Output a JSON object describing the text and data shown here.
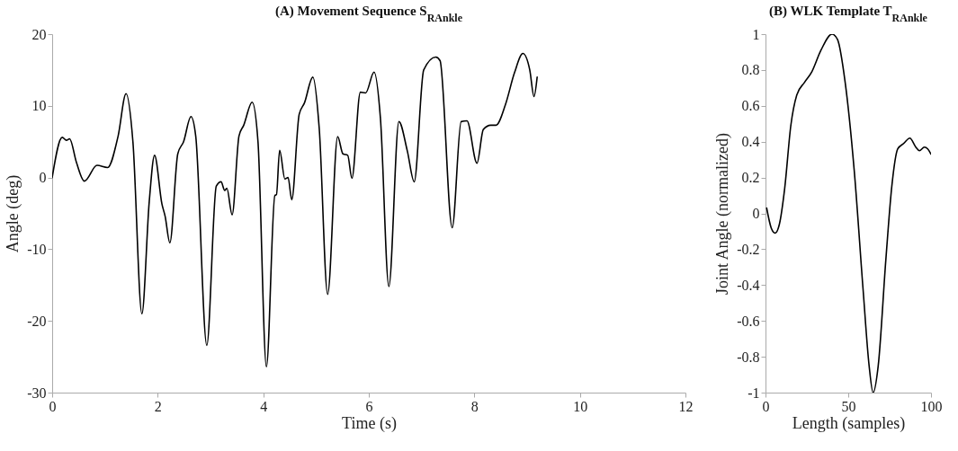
{
  "chart_data": [
    {
      "type": "line",
      "title": "(A) Movement Sequence S$_{RAnkle}$",
      "xlabel": "Time (s)",
      "ylabel": "Angle (deg)",
      "xlim": [
        0,
        12
      ],
      "xticks": [
        0,
        2,
        4,
        6,
        8,
        10,
        12
      ],
      "ylim": [
        -30,
        20
      ],
      "yticks": [
        -30,
        -20,
        -10,
        0,
        10,
        20
      ],
      "grid": false,
      "legend": false,
      "series": [
        {
          "color": "#000000",
          "x": [
            0,
            0.19,
            0.27,
            0.33,
            0.46,
            0.61,
            0.85,
            1.05,
            1.25,
            1.4,
            1.53,
            1.7,
            1.84,
            1.94,
            2.08,
            2.14,
            2.23,
            2.38,
            2.49,
            2.63,
            2.72,
            2.93,
            3.11,
            3.2,
            3.27,
            3.31,
            3.41,
            3.54,
            3.63,
            3.79,
            3.9,
            4.06,
            4.22,
            4.25,
            4.31,
            4.41,
            4.47,
            4.54,
            4.68,
            4.78,
            4.94,
            5.06,
            5.22,
            5.41,
            5.51,
            5.6,
            5.68,
            5.84,
            5.94,
            6.1,
            6.22,
            6.38,
            6.57,
            6.73,
            6.86,
            7.04,
            7.27,
            7.35,
            7.58,
            7.75,
            7.86,
            8.05,
            8.17,
            8.31,
            8.41,
            8.59,
            8.76,
            8.92,
            9.05,
            9.13,
            9.19
          ],
          "values": [
            0,
            5.6,
            5.2,
            5.4,
            2.1,
            -0.5,
            1.7,
            1.4,
            5.8,
            11.7,
            5,
            -19,
            -3.3,
            3.1,
            -3.7,
            -5.4,
            -9.1,
            3.3,
            5,
            8.5,
            5.8,
            -23.4,
            -1.2,
            -0.6,
            -1.8,
            -1.5,
            -5.2,
            5.8,
            7.3,
            10.5,
            5,
            -26.4,
            -2.5,
            -2.4,
            3.8,
            -0.2,
            0,
            -3.1,
            8.8,
            10.4,
            14,
            6.9,
            -16.3,
            5.7,
            3.3,
            3.1,
            -0.1,
            11.9,
            11.8,
            14.7,
            8.3,
            -15.2,
            7.8,
            3.7,
            -0.6,
            15,
            16.8,
            16.3,
            -7,
            7.8,
            7.9,
            2,
            6.7,
            7.3,
            7.3,
            10.2,
            14.6,
            17.3,
            15,
            11.3,
            14
          ]
        }
      ]
    },
    {
      "type": "line",
      "title": "(B) WLK Template T$_{RAnkle}$",
      "xlabel": "Length (samples)",
      "ylabel": "Joint Angle (normalized)",
      "xlim": [
        0,
        100
      ],
      "xticks": [
        0,
        50,
        100
      ],
      "ylim": [
        -1,
        1
      ],
      "yticks": [
        -1,
        -0.8,
        -0.6,
        -0.4,
        -0.2,
        0,
        0.2,
        0.4,
        0.6,
        0.8,
        1
      ],
      "grid": false,
      "legend": false,
      "series": [
        {
          "color": "#000000",
          "x": [
            0.7,
            3.4,
            5.8,
            8.4,
            11.6,
            15.3,
            18.9,
            23.5,
            28,
            33.5,
            40.2,
            43.5,
            48,
            53.6,
            59,
            62.6,
            65,
            68.1,
            72.7,
            76.3,
            79.9,
            83.5,
            87.2,
            90.8,
            93,
            96,
            98,
            100
          ],
          "values": [
            0.03,
            -0.08,
            -0.11,
            -0.06,
            0.14,
            0.49,
            0.66,
            0.73,
            0.79,
            0.91,
            1,
            0.97,
            0.74,
            0.24,
            -0.43,
            -0.85,
            -1,
            -0.85,
            -0.26,
            0.15,
            0.36,
            0.39,
            0.42,
            0.37,
            0.35,
            0.37,
            0.36,
            0.33
          ]
        }
      ]
    }
  ]
}
